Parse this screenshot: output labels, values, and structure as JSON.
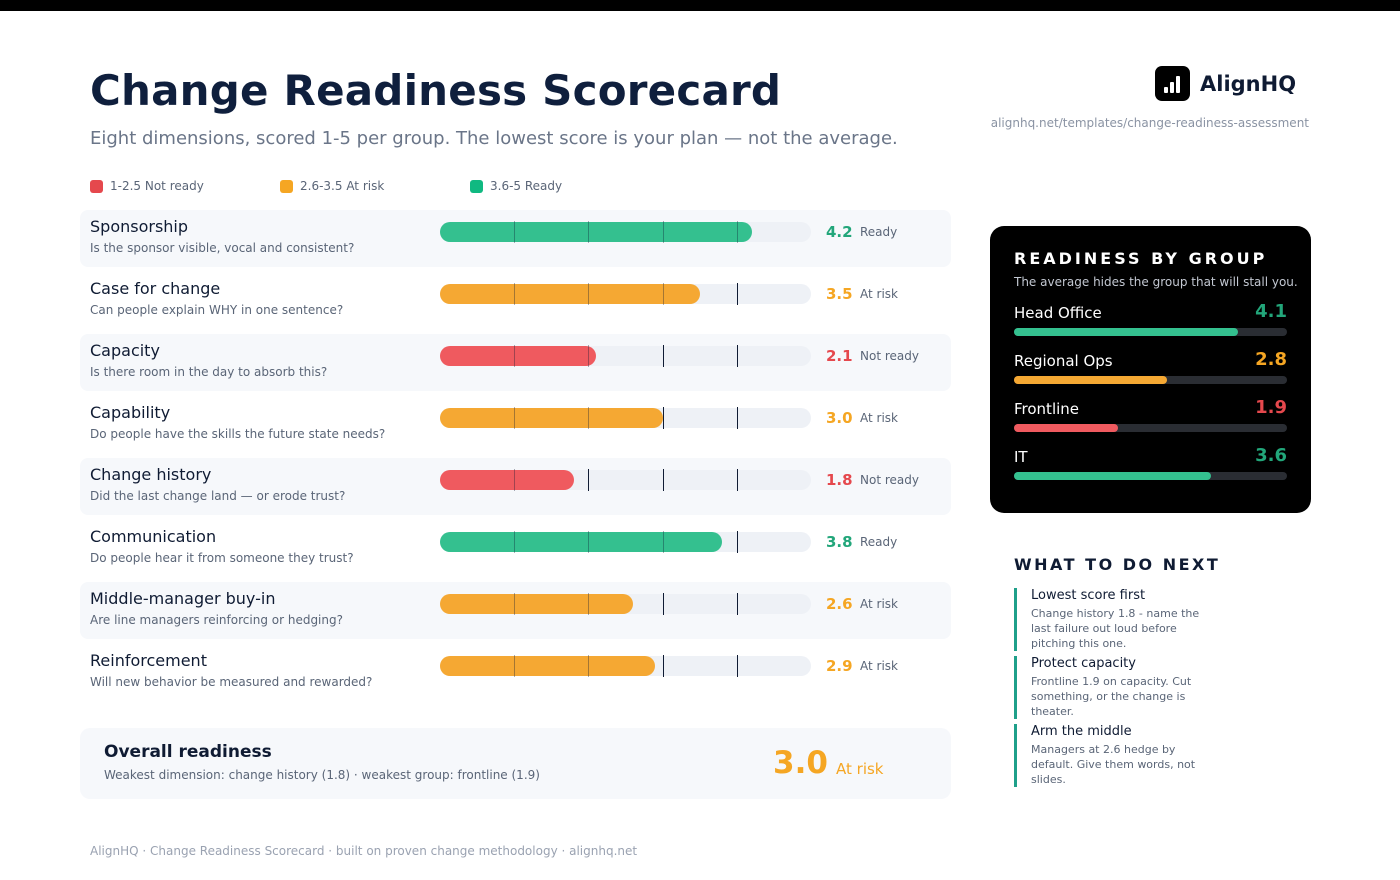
{
  "header": {
    "title": "Change Readiness Scorecard",
    "subtitle": "Eight dimensions, scored 1-5 per group. The lowest score is your plan — not the average."
  },
  "brand": {
    "name": "AlignHQ",
    "url": "alignhq.net/templates/change-readiness-assessment",
    "logo_icon": "bar-chart-icon"
  },
  "legend": [
    {
      "label": "1-2.5 Not ready",
      "color": "#e5484d"
    },
    {
      "label": "2.6-3.5 At risk",
      "color": "#f5a623"
    },
    {
      "label": "3.6-5 Ready",
      "color": "#10b981"
    }
  ],
  "scale": {
    "min": 0,
    "max": 5
  },
  "colors": {
    "ready": "#34c08f",
    "at_risk": "#f5a833",
    "not_ready": "#ef5a5f"
  },
  "score_colors": {
    "ready": "#22a67a",
    "at_risk": "#f5a623",
    "not_ready": "#e5484d"
  },
  "dimensions": [
    {
      "name": "Sponsorship",
      "question": "Is the sponsor visible, vocal and consistent?",
      "score": "4.2",
      "value": 4.2,
      "status": "Ready",
      "level": "ready"
    },
    {
      "name": "Case for change",
      "question": "Can people explain WHY in one sentence?",
      "score": "3.5",
      "value": 3.5,
      "status": "At risk",
      "level": "at_risk"
    },
    {
      "name": "Capacity",
      "question": "Is there room in the day to absorb this?",
      "score": "2.1",
      "value": 2.1,
      "status": "Not ready",
      "level": "not_ready"
    },
    {
      "name": "Capability",
      "question": "Do people have the skills the future state needs?",
      "score": "3.0",
      "value": 3.0,
      "status": "At risk",
      "level": "at_risk"
    },
    {
      "name": "Change history",
      "question": "Did the last change land — or erode trust?",
      "score": "1.8",
      "value": 1.8,
      "status": "Not ready",
      "level": "not_ready"
    },
    {
      "name": "Communication",
      "question": "Do people hear it from someone they trust?",
      "score": "3.8",
      "value": 3.8,
      "status": "Ready",
      "level": "ready"
    },
    {
      "name": "Middle-manager buy-in",
      "question": "Are line managers reinforcing or hedging?",
      "score": "2.6",
      "value": 2.6,
      "status": "At risk",
      "level": "at_risk"
    },
    {
      "name": "Reinforcement",
      "question": "Will new behavior be measured and rewarded?",
      "score": "2.9",
      "value": 2.9,
      "status": "At risk",
      "level": "at_risk"
    }
  ],
  "overall": {
    "title": "Overall readiness",
    "summary": "Weakest dimension: change history (1.8) · weakest group: frontline (1.9)",
    "score": "3.0",
    "status": "At risk"
  },
  "groups": {
    "title": "READINESS BY GROUP",
    "subtitle": "The average hides the group that will stall you.",
    "items": [
      {
        "name": "Head Office",
        "score": "4.1",
        "value": 4.1,
        "level": "ready"
      },
      {
        "name": "Regional Ops",
        "score": "2.8",
        "value": 2.8,
        "level": "at_risk"
      },
      {
        "name": "Frontline",
        "score": "1.9",
        "value": 1.9,
        "level": "not_ready"
      },
      {
        "name": "IT",
        "score": "3.6",
        "value": 3.6,
        "level": "ready"
      }
    ]
  },
  "next_steps": {
    "title": "WHAT TO DO NEXT",
    "items": [
      {
        "heading": "Lowest score first",
        "body": "Change history 1.8 - name the last failure out loud before pitching this one."
      },
      {
        "heading": "Protect capacity",
        "body": "Frontline 1.9 on capacity. Cut something, or the change is theater."
      },
      {
        "heading": "Arm the middle",
        "body": "Managers at 2.6 hedge by default. Give them words, not slides."
      }
    ]
  },
  "footer": "AlignHQ · Change Readiness Scorecard · built on proven change methodology · alignhq.net"
}
